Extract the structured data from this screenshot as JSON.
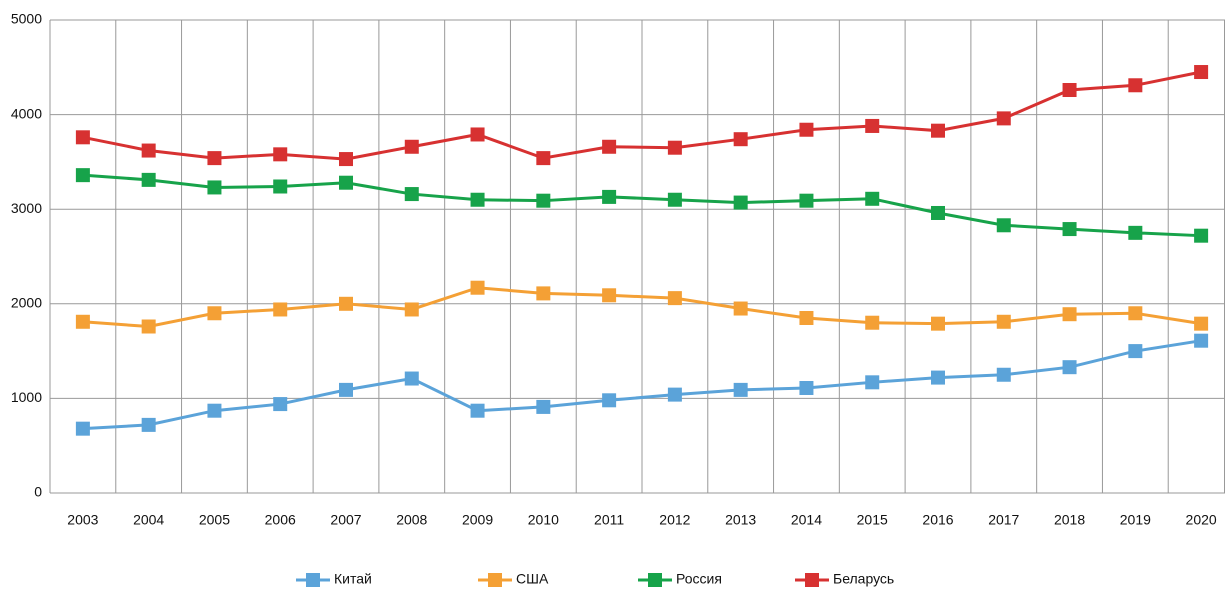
{
  "chart_data": {
    "type": "line",
    "categories": [
      "2003",
      "2004",
      "2005",
      "2006",
      "2007",
      "2008",
      "2009",
      "2010",
      "2011",
      "2012",
      "2013",
      "2014",
      "2015",
      "2016",
      "2017",
      "2018",
      "2019",
      "2020"
    ],
    "series": [
      {
        "name": "Китай",
        "color": "#5ba3d9",
        "values": [
          680,
          720,
          870,
          940,
          1090,
          1210,
          870,
          910,
          980,
          1040,
          1090,
          1110,
          1170,
          1220,
          1250,
          1330,
          1500,
          1610
        ]
      },
      {
        "name": "США",
        "color": "#f4a035",
        "values": [
          1810,
          1760,
          1900,
          1940,
          2000,
          1940,
          2170,
          2110,
          2090,
          2060,
          1950,
          1850,
          1800,
          1790,
          1810,
          1890,
          1900,
          1790
        ]
      },
      {
        "name": "Россия",
        "color": "#17a34a",
        "values": [
          3360,
          3310,
          3230,
          3240,
          3280,
          3160,
          3100,
          3090,
          3130,
          3100,
          3070,
          3090,
          3110,
          2960,
          2830,
          2790,
          2750,
          2720
        ]
      },
      {
        "name": "Беларусь",
        "color": "#d73131",
        "values": [
          3760,
          3620,
          3540,
          3580,
          3530,
          3660,
          3790,
          3540,
          3660,
          3650,
          3740,
          3840,
          3880,
          3830,
          3960,
          4260,
          4310,
          4450
        ]
      }
    ],
    "ylim": [
      0,
      5000
    ],
    "yticks": [
      0,
      1000,
      2000,
      3000,
      4000,
      5000
    ],
    "grid": true,
    "legend": "bottom"
  }
}
